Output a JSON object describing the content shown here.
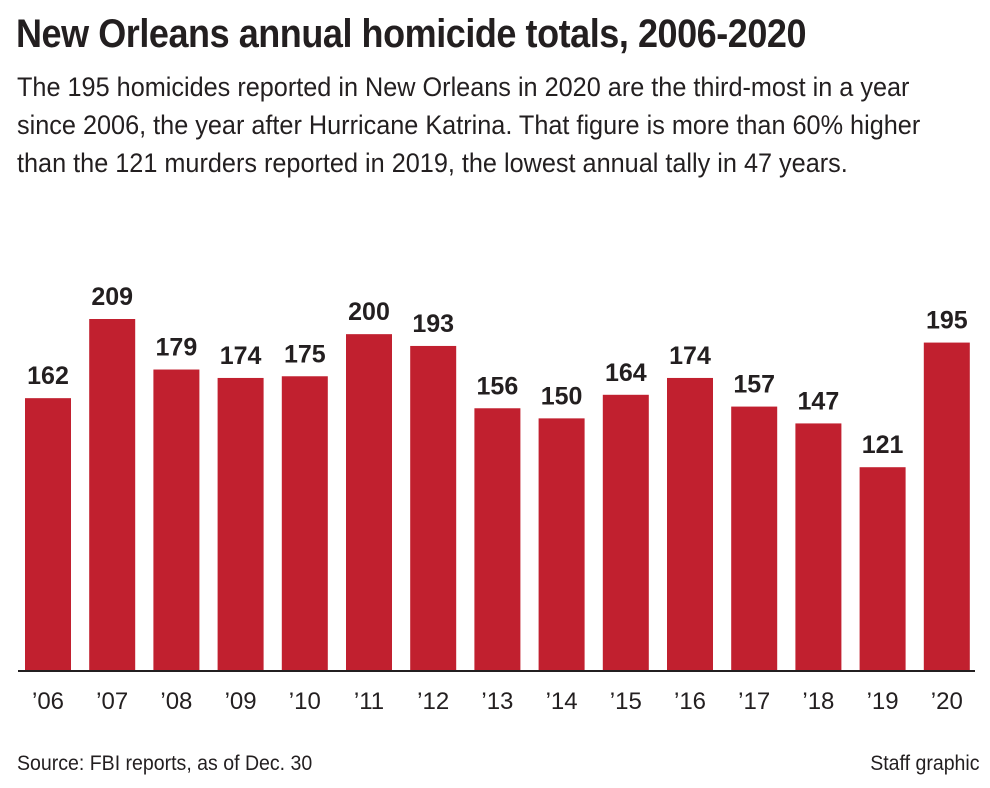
{
  "header": {
    "title": "New Orleans annual homicide totals, 2006-2020",
    "subtitle": "The 195 homicides reported in New Orleans in 2020 are the third-most in a year since 2006, the year after Hurricane Katrina. That figure is more than 60% higher than the 121 murders reported in 2019, the lowest annual tally in 47 years."
  },
  "footer": {
    "source": "Source: FBI reports, as of Dec. 30",
    "credit": "Staff graphic"
  },
  "colors": {
    "bar": "#c1202f",
    "text": "#231f20",
    "axis": "#231f20"
  },
  "chart_data": {
    "type": "bar",
    "title": "New Orleans annual homicide totals, 2006-2020",
    "xlabel": "",
    "ylabel": "",
    "categories": [
      "’06",
      "’07",
      "’08",
      "’09",
      "’10",
      "’11",
      "’12",
      "’13",
      "’14",
      "’15",
      "’16",
      "’17",
      "’18",
      "’19",
      "’20"
    ],
    "values": [
      162,
      209,
      179,
      174,
      175,
      200,
      193,
      156,
      150,
      164,
      174,
      157,
      147,
      121,
      195
    ],
    "ylim": [
      0,
      250
    ],
    "grid": false,
    "legend": "none",
    "data_labels": true
  }
}
